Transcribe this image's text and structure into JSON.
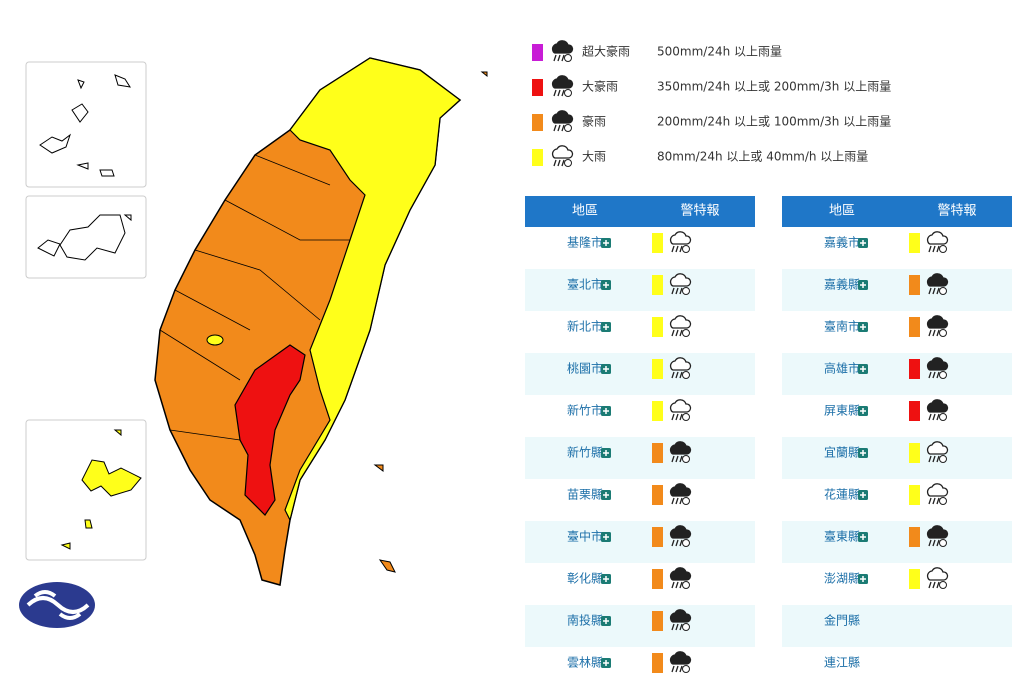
{
  "legend": [
    {
      "name": "超大豪雨",
      "description": "500mm/24h 以上雨量",
      "color": "#c81cd6"
    },
    {
      "name": "大豪雨",
      "description": "350mm/24h 以上或 200mm/3h 以上雨量",
      "color": "#ee1111"
    },
    {
      "name": "豪雨",
      "description": "200mm/24h 以上或 100mm/3h 以上雨量",
      "color": "#f28a1b"
    },
    {
      "name": "大雨",
      "description": "80mm/24h 以上或 40mm/h 以上雨量",
      "color": "#ffff1a"
    }
  ],
  "tables": [
    {
      "headers": [
        "地區",
        "警特報"
      ],
      "rows": [
        {
          "region": "基隆市",
          "color": "#ffff1a"
        },
        {
          "region": "臺北市",
          "color": "#ffff1a"
        },
        {
          "region": "新北市",
          "color": "#ffff1a"
        },
        {
          "region": "桃園市",
          "color": "#ffff1a"
        },
        {
          "region": "新竹市",
          "color": "#ffff1a"
        },
        {
          "region": "新竹縣",
          "color": "#f28a1b"
        },
        {
          "region": "苗栗縣",
          "color": "#f28a1b"
        },
        {
          "region": "臺中市",
          "color": "#f28a1b"
        },
        {
          "region": "彰化縣",
          "color": "#f28a1b"
        },
        {
          "region": "南投縣",
          "color": "#f28a1b"
        },
        {
          "region": "雲林縣",
          "color": "#f28a1b"
        }
      ]
    },
    {
      "headers": [
        "地區",
        "警特報"
      ],
      "rows": [
        {
          "region": "嘉義市",
          "color": "#ffff1a"
        },
        {
          "region": "嘉義縣",
          "color": "#f28a1b"
        },
        {
          "region": "臺南市",
          "color": "#f28a1b"
        },
        {
          "region": "高雄市",
          "color": "#ee1111"
        },
        {
          "region": "屏東縣",
          "color": "#ee1111"
        },
        {
          "region": "宜蘭縣",
          "color": "#ffff1a"
        },
        {
          "region": "花蓮縣",
          "color": "#ffff1a"
        },
        {
          "region": "臺東縣",
          "color": "#f28a1b"
        },
        {
          "region": "澎湖縣",
          "color": "#ffff1a"
        },
        {
          "region": "金門縣"
        },
        {
          "region": "連江縣"
        }
      ]
    }
  ]
}
